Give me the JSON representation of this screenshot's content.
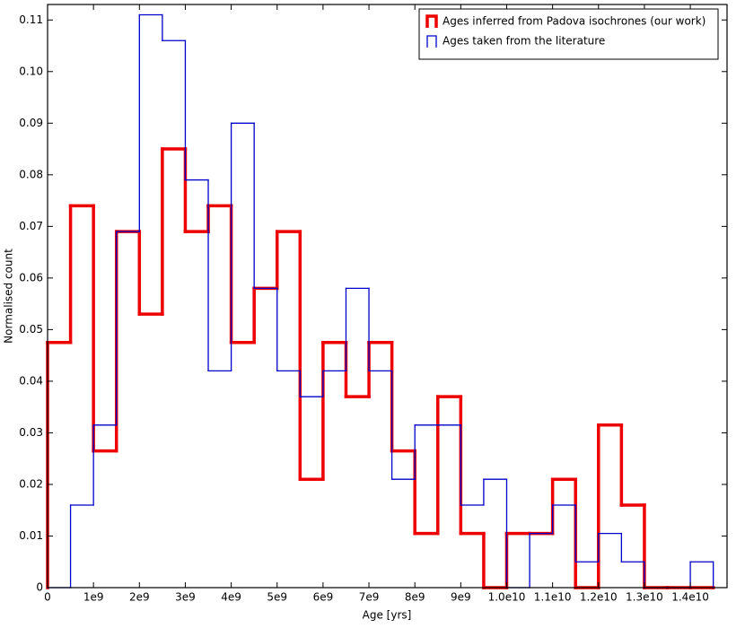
{
  "chart_data": {
    "type": "histogram",
    "xlabel": "Age [yrs]",
    "ylabel": "Normalised count",
    "bins": [
      0,
      500000000,
      1000000000,
      1500000000,
      2000000000,
      2500000000,
      3000000000,
      3500000000,
      4000000000,
      4500000000,
      5000000000,
      5500000000,
      6000000000,
      6500000000,
      7000000000,
      7500000000,
      8000000000,
      8500000000,
      9000000000,
      9500000000,
      10000000000,
      10500000000,
      11000000000,
      11500000000,
      12000000000,
      12500000000,
      13000000000,
      13500000000,
      14000000000,
      14500000000
    ],
    "series": [
      {
        "name": "Ages inferred from Padova isochrones (our work)",
        "color": "#ee0000",
        "line_width": 3.5,
        "values": [
          0.0475,
          0.074,
          0.0265,
          0.069,
          0.053,
          0.085,
          0.069,
          0.074,
          0.0475,
          0.058,
          0.069,
          0.021,
          0.0475,
          0.037,
          0.0475,
          0.0265,
          0.0105,
          0.037,
          0.0105,
          0,
          0.0105,
          0.0105,
          0.021,
          0,
          0.0315,
          0.016,
          0,
          0,
          0
        ]
      },
      {
        "name": "Ages taken from the literature",
        "color": "#0000cc",
        "line_width": 1.3,
        "values": [
          0,
          0.016,
          0.0315,
          0.069,
          0.111,
          0.106,
          0.079,
          0.042,
          0.09,
          0.058,
          0.042,
          0.037,
          0.042,
          0.058,
          0.042,
          0.021,
          0.0315,
          0.0315,
          0.016,
          0.021,
          0,
          0.0105,
          0.016,
          0.005,
          0.0105,
          0.005,
          0,
          0,
          0.005
        ]
      }
    ],
    "xlim": [
      0,
      14800000000
    ],
    "ylim": [
      0,
      0.113
    ],
    "xticks": [
      0,
      {
        "value": 1000000000,
        "label": "1e9"
      },
      {
        "value": 2000000000,
        "label": "2e9"
      },
      {
        "value": 3000000000,
        "label": "3e9"
      },
      {
        "value": 4000000000,
        "label": "4e9"
      },
      {
        "value": 5000000000,
        "label": "5e9"
      },
      {
        "value": 6000000000,
        "label": "6e9"
      },
      {
        "value": 7000000000,
        "label": "7e9"
      },
      {
        "value": 8000000000,
        "label": "8e9"
      },
      {
        "value": 9000000000,
        "label": "9e9"
      },
      {
        "value": 10000000000,
        "label": "1.0e10"
      },
      {
        "value": 11000000000,
        "label": "1.1e10"
      },
      {
        "value": 12000000000,
        "label": "1.2e10"
      },
      {
        "value": 13000000000,
        "label": "1.3e10"
      },
      {
        "value": 14000000000,
        "label": "1.4e10"
      }
    ],
    "yticks": [
      0,
      0.01,
      0.02,
      0.03,
      0.04,
      0.05,
      0.06,
      0.07,
      0.08,
      0.09,
      {
        "value": 0.1,
        "label": "0.10"
      },
      0.11
    ],
    "legend": "upper right"
  }
}
